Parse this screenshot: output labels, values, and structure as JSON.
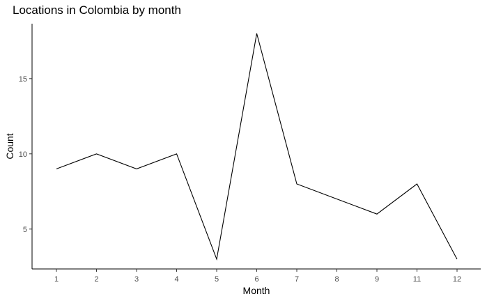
{
  "chart_data": {
    "type": "line",
    "title": "Locations in Colombia by month",
    "xlabel": "Month",
    "ylabel": "Count",
    "x": [
      "1",
      "2",
      "3",
      "4",
      "5",
      "6",
      "7",
      "8",
      "9",
      "11",
      "12"
    ],
    "series": [
      {
        "values": [
          9,
          10,
          9,
          10,
          3,
          18,
          8,
          7,
          6,
          8,
          3
        ],
        "color": "#000000"
      }
    ],
    "ylim": [
      2.35,
      18.65
    ],
    "yticks": [
      5,
      10,
      15
    ],
    "grid": false,
    "legend": "none"
  }
}
